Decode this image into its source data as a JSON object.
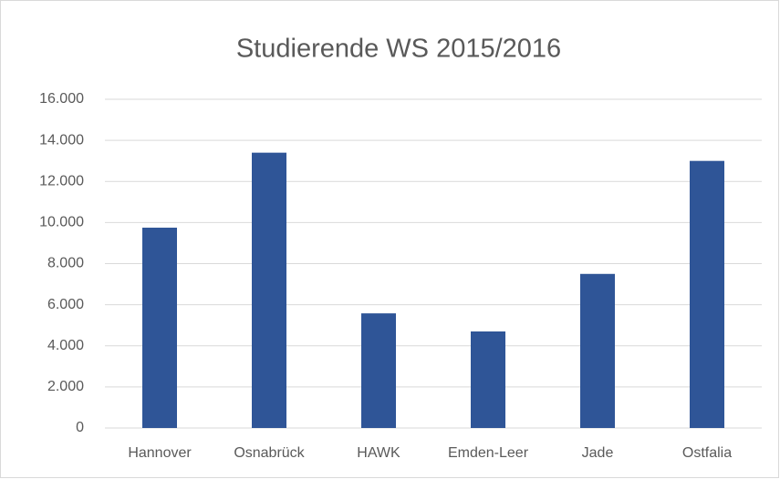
{
  "chart_data": {
    "type": "bar",
    "title": "Studierende WS 2015/2016",
    "categories": [
      "Hannover",
      "Osnabrück",
      "HAWK",
      "Emden-Leer",
      "Jade",
      "Ostfalia"
    ],
    "values": [
      9750,
      13400,
      5580,
      4700,
      7500,
      13000
    ],
    "color": "#2f5597",
    "ylim": [
      0,
      16000
    ],
    "yticks": [
      0,
      {
        "value": 2000,
        "label": "2.000"
      },
      {
        "value": 4000,
        "label": "4.000"
      },
      {
        "value": 6000,
        "label": "6.000"
      },
      {
        "value": 8000,
        "label": "8.000"
      },
      {
        "value": 10000,
        "label": "10.000"
      },
      {
        "value": 12000,
        "label": "12.000"
      },
      {
        "value": 14000,
        "label": "14.000"
      },
      {
        "value": 16000,
        "label": "16.000"
      }
    ],
    "grid": true
  }
}
